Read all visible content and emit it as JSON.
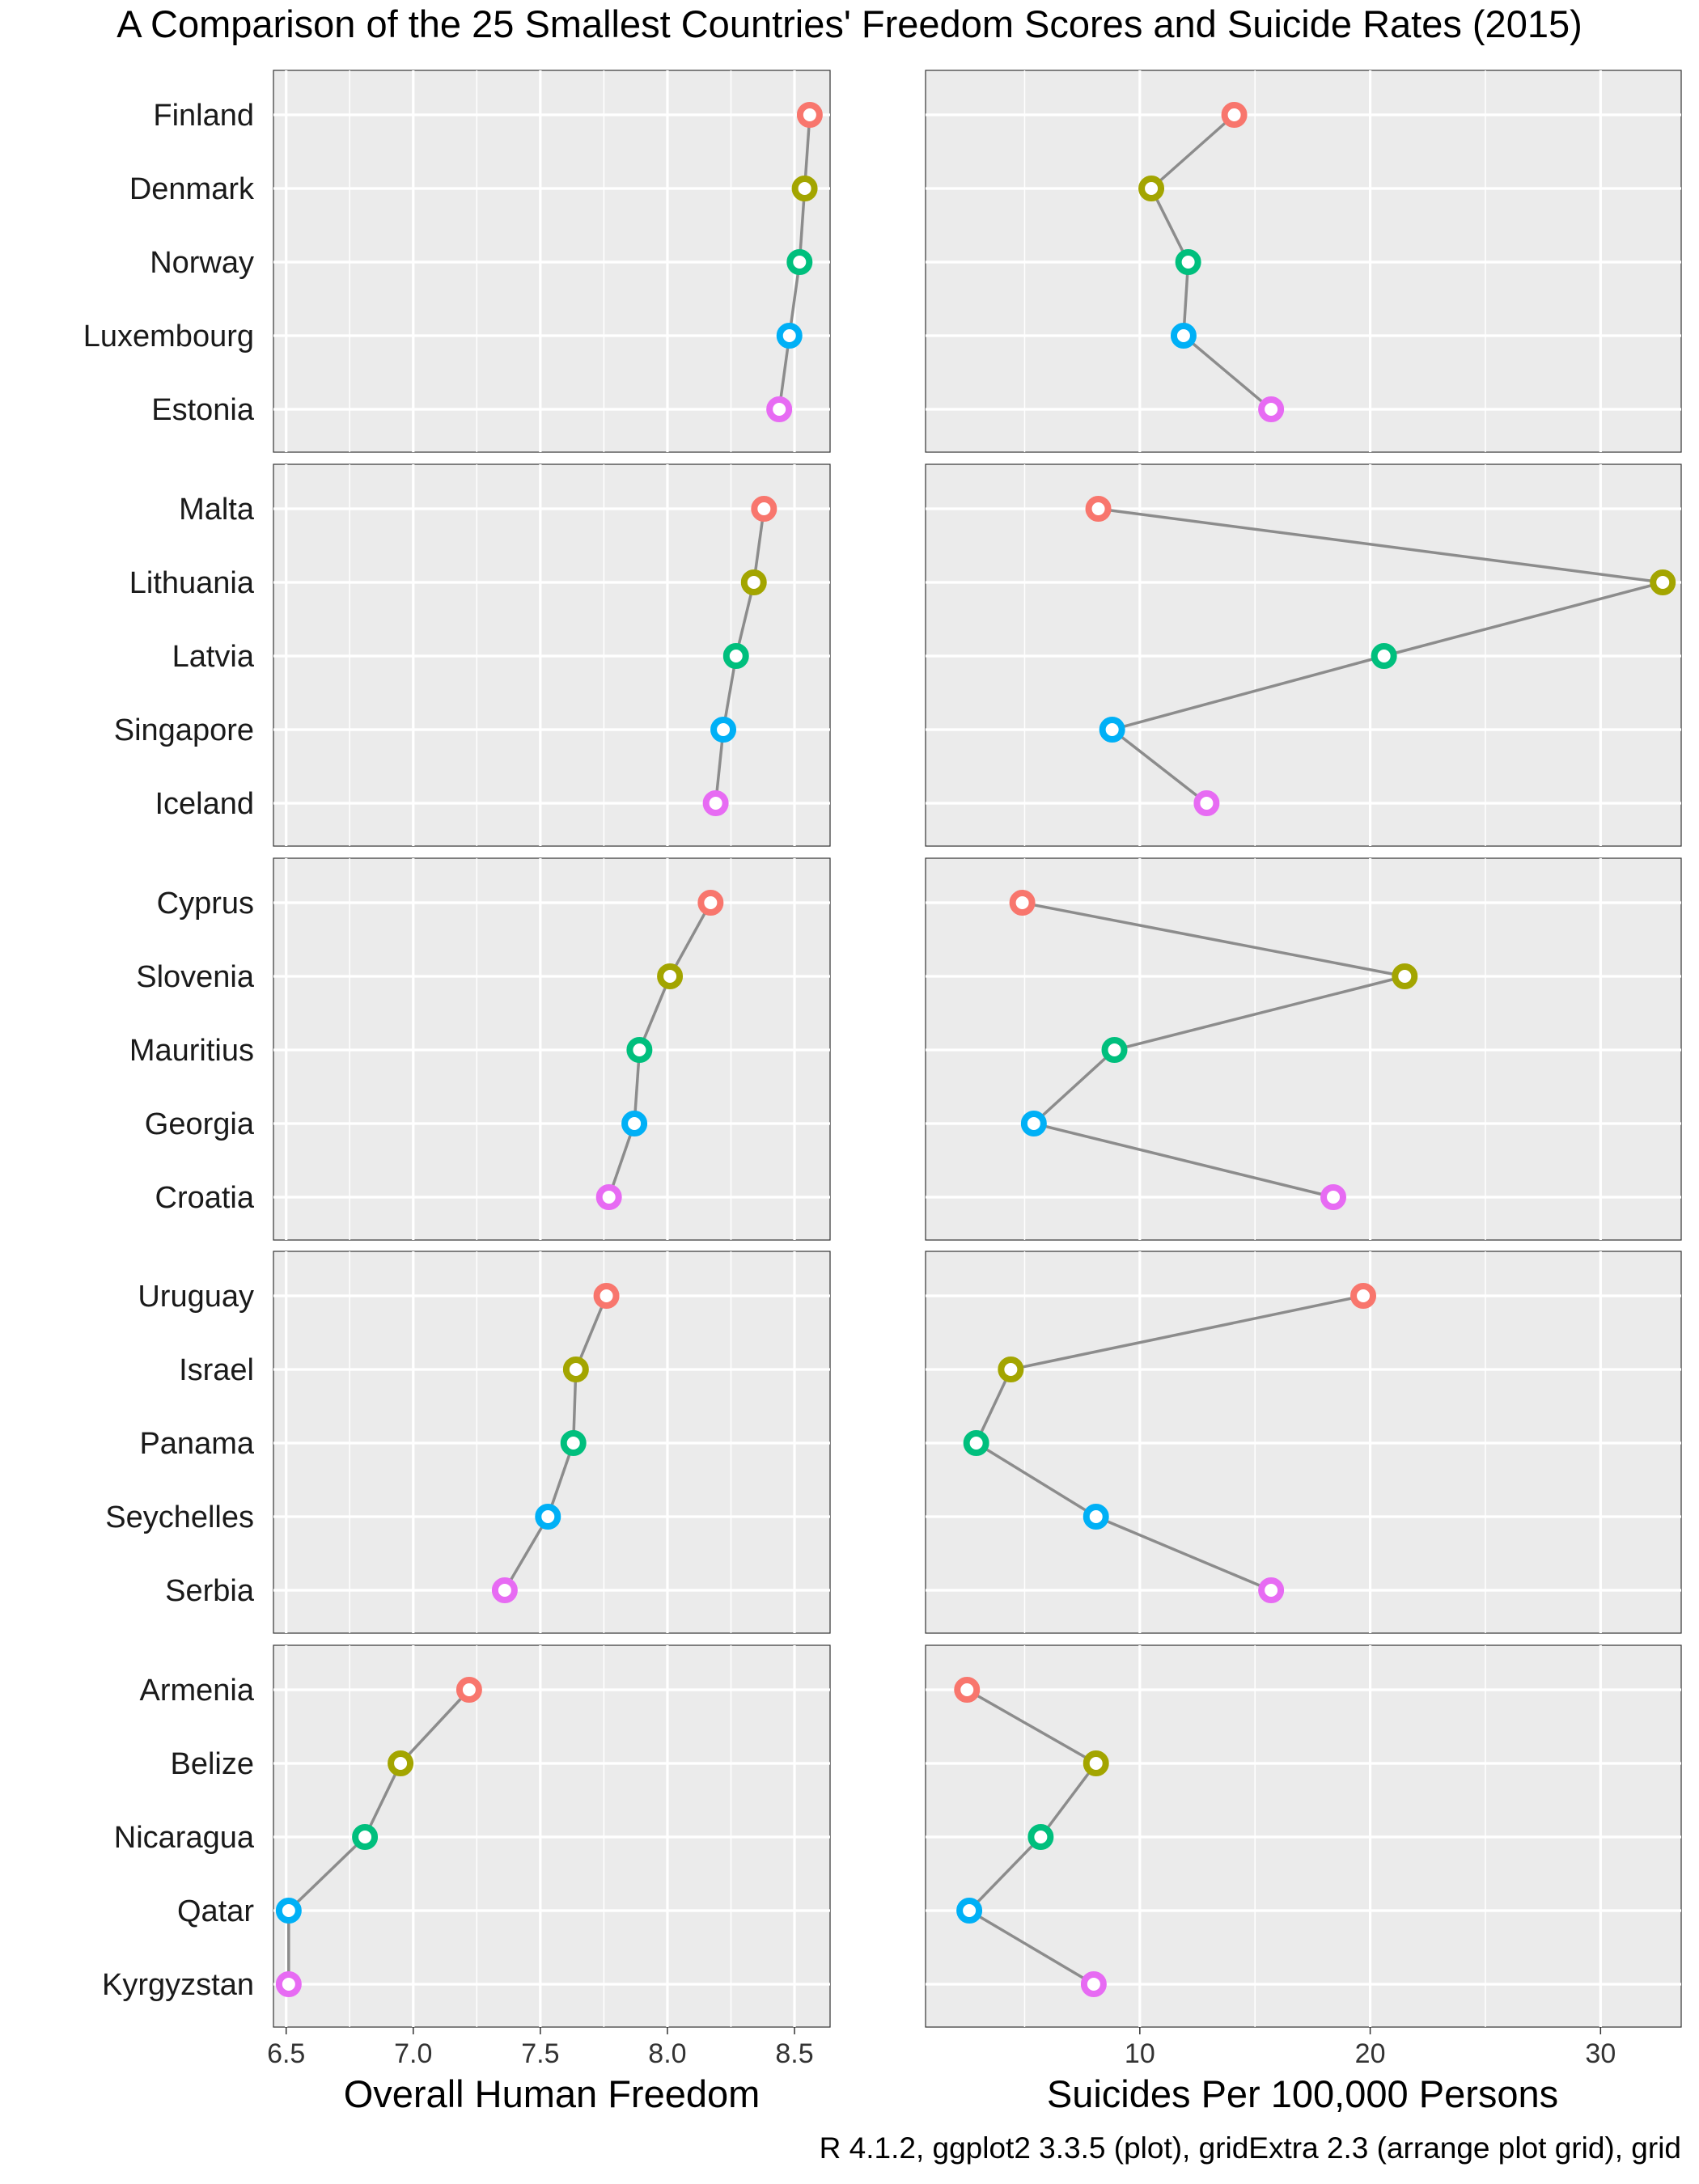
{
  "chart_data": {
    "type": "dot-line",
    "title": "A Comparison of the 25 Smallest Countries' Freedom Scores and Suicide Rates (2015)",
    "caption": "R 4.1.2, ggplot2 3.3.5 (plot), gridExtra 2.3 (arrange plot grid), grid",
    "colors": [
      "#F8766D",
      "#A3A500",
      "#00BF7D",
      "#00B0F6",
      "#E76BF3"
    ],
    "line_color": "#8c8c8c",
    "panel_background": "#EBEBEB",
    "left_axis": {
      "title": "Overall Human Freedom",
      "xlim": [
        6.45,
        8.64
      ],
      "ticks": [
        6.5,
        7.0,
        7.5,
        8.0,
        8.5
      ],
      "tick_labels": [
        "6.5",
        "7.0",
        "7.5",
        "8.0",
        "8.5"
      ]
    },
    "right_axis": {
      "title": "Suicides Per 100,000 Persons",
      "xlim": [
        0.7,
        33.5
      ],
      "ticks": [
        10,
        20,
        30
      ],
      "tick_labels": [
        "10",
        "20",
        "30"
      ]
    },
    "groups": [
      {
        "countries": [
          {
            "name": "Finland",
            "freedom": 8.56,
            "suicide": 14.1
          },
          {
            "name": "Denmark",
            "freedom": 8.54,
            "suicide": 10.5
          },
          {
            "name": "Norway",
            "freedom": 8.52,
            "suicide": 12.1
          },
          {
            "name": "Luxembourg",
            "freedom": 8.48,
            "suicide": 11.9
          },
          {
            "name": "Estonia",
            "freedom": 8.44,
            "suicide": 15.7
          }
        ]
      },
      {
        "countries": [
          {
            "name": "Malta",
            "freedom": 8.38,
            "suicide": 8.2
          },
          {
            "name": "Lithuania",
            "freedom": 8.34,
            "suicide": 32.7
          },
          {
            "name": "Latvia",
            "freedom": 8.27,
            "suicide": 20.6
          },
          {
            "name": "Singapore",
            "freedom": 8.22,
            "suicide": 8.8
          },
          {
            "name": "Iceland",
            "freedom": 8.19,
            "suicide": 12.9
          }
        ]
      },
      {
        "countries": [
          {
            "name": "Cyprus",
            "freedom": 8.17,
            "suicide": 4.9
          },
          {
            "name": "Slovenia",
            "freedom": 8.01,
            "suicide": 21.5
          },
          {
            "name": "Mauritius",
            "freedom": 7.89,
            "suicide": 8.9
          },
          {
            "name": "Georgia",
            "freedom": 7.87,
            "suicide": 5.4
          },
          {
            "name": "Croatia",
            "freedom": 7.77,
            "suicide": 18.4
          }
        ]
      },
      {
        "countries": [
          {
            "name": "Uruguay",
            "freedom": 7.76,
            "suicide": 19.7
          },
          {
            "name": "Israel",
            "freedom": 7.64,
            "suicide": 4.4
          },
          {
            "name": "Panama",
            "freedom": 7.63,
            "suicide": 2.9
          },
          {
            "name": "Seychelles",
            "freedom": 7.53,
            "suicide": 8.1
          },
          {
            "name": "Serbia",
            "freedom": 7.36,
            "suicide": 15.7
          }
        ]
      },
      {
        "countries": [
          {
            "name": "Armenia",
            "freedom": 7.22,
            "suicide": 2.5
          },
          {
            "name": "Belize",
            "freedom": 6.95,
            "suicide": 8.1
          },
          {
            "name": "Nicaragua",
            "freedom": 6.81,
            "suicide": 5.7
          },
          {
            "name": "Qatar",
            "freedom": 6.51,
            "suicide": 2.6
          },
          {
            "name": "Kyrgyzstan",
            "freedom": 6.51,
            "suicide": 8.0
          }
        ]
      }
    ]
  }
}
